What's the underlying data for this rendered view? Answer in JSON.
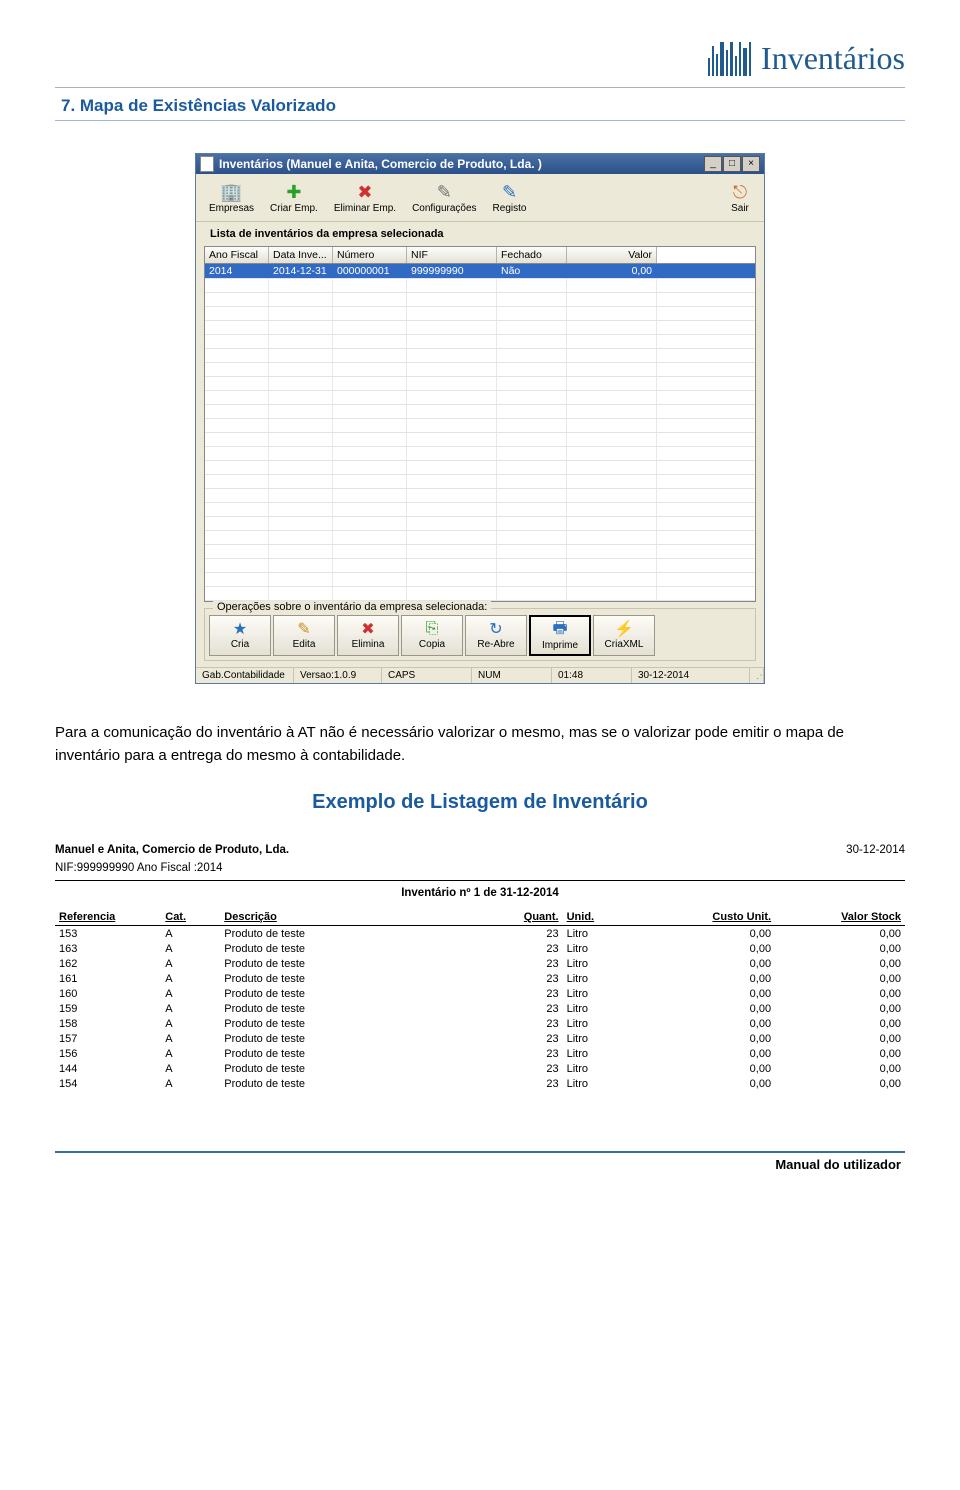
{
  "logo_text": "Inventários",
  "section_heading": "7.  Mapa de Existências Valorizado",
  "body_paragraph": "Para a comunicação do inventário à AT não é necessário valorizar o mesmo, mas se o valorizar pode emitir o mapa de inventário para a entrega do mesmo à contabilidade.",
  "example_heading": "Exemplo de Listagem de Inventário",
  "footer": "Manual do utilizador",
  "window": {
    "title": "Inventários (Manuel e Anita, Comercio de Produto, Lda. )",
    "toolbar": [
      {
        "label": "Empresas",
        "icon": "🏢",
        "color": "#2a6fc0"
      },
      {
        "label": "Criar Emp.",
        "icon": "✚",
        "color": "#2aa02a"
      },
      {
        "label": "Eliminar Emp.",
        "icon": "✖",
        "color": "#d03030"
      },
      {
        "label": "Configurações",
        "icon": "✎",
        "color": "#707070"
      },
      {
        "label": "Registo",
        "icon": "✎",
        "color": "#2a6fc0"
      },
      {
        "label": "Sair",
        "icon": "⎋",
        "color": "#d07030"
      }
    ],
    "section_title": "Lista de inventários da empresa selecionada",
    "grid_columns": [
      "Ano Fiscal",
      "Data Inve...",
      "Número",
      "NIF",
      "Fechado",
      "Valor"
    ],
    "grid_rows": [
      {
        "ano": "2014",
        "data": "2014-12-31",
        "num": "000000001",
        "nif": "999999990",
        "fechado": "Não",
        "valor": "0,00"
      }
    ],
    "empty_row_count": 23,
    "ops_legend": "Operações sobre o inventário da empresa selecionada:",
    "ops": [
      {
        "label": "Cria",
        "icon": "★",
        "color": "#2a6fc0",
        "hl": false
      },
      {
        "label": "Edita",
        "icon": "✎",
        "color": "#c89020",
        "hl": false
      },
      {
        "label": "Elimina",
        "icon": "✖",
        "color": "#d03030",
        "hl": false
      },
      {
        "label": "Copia",
        "icon": "⎘",
        "color": "#2aa02a",
        "hl": false
      },
      {
        "label": "Re-Abre",
        "icon": "↻",
        "color": "#2a6fc0",
        "hl": false
      },
      {
        "label": "Imprime",
        "icon": "🖶",
        "color": "#2a6fc0",
        "hl": true
      },
      {
        "label": "CriaXML",
        "icon": "⚡",
        "color": "#d07030",
        "hl": false
      }
    ],
    "statusbar": {
      "s0": "Gab.Contabilidade",
      "s1": "Versao:1.0.9",
      "s2": "CAPS",
      "s3": "NUM",
      "s4": "01:48",
      "s5": "30-12-2014"
    }
  },
  "report": {
    "company": "Manuel e Anita, Comercio de Produto, Lda.",
    "date": "30-12-2014",
    "sub": "NIF:999999990 Ano Fiscal :2014",
    "title": "Inventário nº 1 de 31-12-2014",
    "columns": [
      "Referencia",
      "Cat.",
      "Descrição",
      "Quant.",
      "Unid.",
      "Custo Unit.",
      "Valor Stock"
    ],
    "rows": [
      {
        "ref": "153",
        "cat": "A",
        "desc": "Produto de teste",
        "quant": "23",
        "unid": "Litro",
        "custo": "0,00",
        "valor": "0,00"
      },
      {
        "ref": "163",
        "cat": "A",
        "desc": "Produto de teste",
        "quant": "23",
        "unid": "Litro",
        "custo": "0,00",
        "valor": "0,00"
      },
      {
        "ref": "162",
        "cat": "A",
        "desc": "Produto de teste",
        "quant": "23",
        "unid": "Litro",
        "custo": "0,00",
        "valor": "0,00"
      },
      {
        "ref": "161",
        "cat": "A",
        "desc": "Produto de teste",
        "quant": "23",
        "unid": "Litro",
        "custo": "0,00",
        "valor": "0,00"
      },
      {
        "ref": "160",
        "cat": "A",
        "desc": "Produto de teste",
        "quant": "23",
        "unid": "Litro",
        "custo": "0,00",
        "valor": "0,00"
      },
      {
        "ref": "159",
        "cat": "A",
        "desc": "Produto de teste",
        "quant": "23",
        "unid": "Litro",
        "custo": "0,00",
        "valor": "0,00"
      },
      {
        "ref": "158",
        "cat": "A",
        "desc": "Produto de teste",
        "quant": "23",
        "unid": "Litro",
        "custo": "0,00",
        "valor": "0,00"
      },
      {
        "ref": "157",
        "cat": "A",
        "desc": "Produto de teste",
        "quant": "23",
        "unid": "Litro",
        "custo": "0,00",
        "valor": "0,00"
      },
      {
        "ref": "156",
        "cat": "A",
        "desc": "Produto de teste",
        "quant": "23",
        "unid": "Litro",
        "custo": "0,00",
        "valor": "0,00"
      },
      {
        "ref": "144",
        "cat": "A",
        "desc": "Produto de teste",
        "quant": "23",
        "unid": "Litro",
        "custo": "0,00",
        "valor": "0,00"
      },
      {
        "ref": "154",
        "cat": "A",
        "desc": "Produto de teste",
        "quant": "23",
        "unid": "Litro",
        "custo": "0,00",
        "valor": "0,00"
      }
    ]
  }
}
